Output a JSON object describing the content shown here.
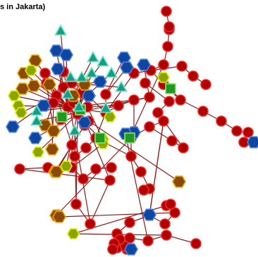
{
  "figure": {
    "title": "s in Jakarta)"
  },
  "colors": {
    "edge": "#8b1a1a",
    "red_fill": "#b10000",
    "red_stroke": "#ee2a2a",
    "blue_fill": "#0d47a1",
    "blue_stroke": "#4f7fd6",
    "brown_fill": "#8a4a06",
    "brown_stroke": "#e6a200",
    "olive_fill": "#8ca400",
    "olive_stroke": "#d9ef00",
    "green_fill": "#1f9a1f",
    "green_stroke": "#8ce27a",
    "teal_fill": "#149c84",
    "teal_stroke": "#6fe3c6"
  },
  "legend_note": "",
  "nodes": [
    {
      "id": "hub1",
      "kind": "red"
    },
    {
      "id": "hub2",
      "kind": "red"
    },
    {
      "id": "hub3",
      "kind": "red"
    },
    {
      "id": "c1",
      "kind": "red"
    },
    {
      "id": "c2",
      "kind": "red"
    },
    {
      "id": "c3",
      "kind": "red"
    },
    {
      "id": "c4",
      "kind": "red"
    },
    {
      "id": "c5",
      "kind": "red"
    },
    {
      "id": "c6",
      "kind": "red"
    },
    {
      "id": "c7",
      "kind": "red"
    },
    {
      "id": "c8",
      "kind": "red"
    },
    {
      "id": "c9",
      "kind": "red"
    },
    {
      "id": "c10",
      "kind": "red"
    },
    {
      "id": "c11",
      "kind": "red"
    },
    {
      "id": "c12",
      "kind": "red"
    },
    {
      "id": "t1",
      "kind": "red"
    },
    {
      "id": "t2",
      "kind": "red"
    },
    {
      "id": "t3",
      "kind": "red"
    },
    {
      "id": "t4",
      "kind": "red"
    },
    {
      "id": "t5",
      "kind": "red"
    },
    {
      "id": "t6",
      "kind": "red"
    },
    {
      "id": "t7",
      "kind": "red"
    },
    {
      "id": "t8",
      "kind": "red"
    },
    {
      "id": "r1",
      "kind": "red"
    },
    {
      "id": "r2",
      "kind": "red"
    },
    {
      "id": "r3",
      "kind": "red"
    },
    {
      "id": "r4",
      "kind": "red"
    },
    {
      "id": "r5",
      "kind": "red"
    },
    {
      "id": "r6",
      "kind": "red"
    },
    {
      "id": "r7",
      "kind": "red"
    },
    {
      "id": "r8",
      "kind": "red"
    },
    {
      "id": "r9",
      "kind": "red"
    },
    {
      "id": "r10",
      "kind": "red"
    },
    {
      "id": "r11",
      "kind": "red"
    },
    {
      "id": "r12",
      "kind": "red"
    },
    {
      "id": "r13",
      "kind": "red"
    },
    {
      "id": "r14",
      "kind": "red"
    },
    {
      "id": "r15",
      "kind": "red"
    },
    {
      "id": "r16",
      "kind": "red"
    },
    {
      "id": "r17",
      "kind": "red"
    },
    {
      "id": "m1",
      "kind": "red"
    },
    {
      "id": "m2",
      "kind": "red"
    },
    {
      "id": "m3",
      "kind": "red"
    },
    {
      "id": "m4",
      "kind": "red"
    },
    {
      "id": "m5",
      "kind": "red"
    },
    {
      "id": "m6",
      "kind": "red"
    },
    {
      "id": "m7",
      "kind": "red"
    },
    {
      "id": "m8",
      "kind": "red"
    },
    {
      "id": "m9",
      "kind": "red"
    },
    {
      "id": "m10",
      "kind": "red"
    },
    {
      "id": "m11",
      "kind": "red"
    },
    {
      "id": "m12",
      "kind": "red"
    },
    {
      "id": "b1",
      "kind": "red"
    },
    {
      "id": "b2",
      "kind": "red"
    },
    {
      "id": "b3",
      "kind": "red"
    },
    {
      "id": "b4",
      "kind": "red"
    },
    {
      "id": "b5",
      "kind": "red"
    },
    {
      "id": "b6",
      "kind": "red"
    },
    {
      "id": "b7",
      "kind": "red"
    },
    {
      "id": "b8",
      "kind": "red"
    },
    {
      "id": "b9",
      "kind": "red"
    },
    {
      "id": "b10",
      "kind": "red"
    },
    {
      "id": "b11",
      "kind": "red"
    },
    {
      "id": "b12",
      "kind": "red"
    },
    {
      "id": "b13",
      "kind": "red"
    },
    {
      "id": "b14",
      "kind": "red"
    },
    {
      "id": "b15",
      "kind": "red"
    },
    {
      "id": "b16",
      "kind": "red"
    },
    {
      "id": "b17",
      "kind": "red"
    },
    {
      "id": "b18",
      "kind": "red"
    },
    {
      "id": "l1",
      "kind": "red"
    },
    {
      "id": "l2",
      "kind": "red"
    },
    {
      "id": "l3",
      "kind": "red"
    },
    {
      "id": "l4",
      "kind": "red"
    },
    {
      "id": "l5",
      "kind": "red"
    },
    {
      "id": "x1",
      "kind": "red"
    },
    {
      "id": "x2",
      "kind": "red"
    },
    {
      "id": "x3",
      "kind": "red"
    },
    {
      "id": "x4",
      "kind": "red"
    },
    {
      "id": "x5",
      "kind": "red"
    },
    {
      "id": "u1",
      "kind": "blue"
    },
    {
      "id": "u2",
      "kind": "blue"
    },
    {
      "id": "u3",
      "kind": "blue"
    },
    {
      "id": "u4",
      "kind": "blue"
    },
    {
      "id": "u5",
      "kind": "blue"
    },
    {
      "id": "u6",
      "kind": "blue"
    },
    {
      "id": "u7",
      "kind": "blue"
    },
    {
      "id": "u8",
      "kind": "blue"
    },
    {
      "id": "u9",
      "kind": "blue"
    },
    {
      "id": "u10",
      "kind": "blue"
    },
    {
      "id": "u11",
      "kind": "blue"
    },
    {
      "id": "u12",
      "kind": "blue"
    },
    {
      "id": "u13",
      "kind": "blue"
    },
    {
      "id": "u14",
      "kind": "blue"
    },
    {
      "id": "u15",
      "kind": "blue"
    },
    {
      "id": "u16",
      "kind": "blue"
    },
    {
      "id": "u17",
      "kind": "blue"
    },
    {
      "id": "h1",
      "kind": "brown"
    },
    {
      "id": "h2",
      "kind": "brown"
    },
    {
      "id": "h3",
      "kind": "brown"
    },
    {
      "id": "h4",
      "kind": "brown"
    },
    {
      "id": "h5",
      "kind": "brown"
    },
    {
      "id": "h6",
      "kind": "brown"
    },
    {
      "id": "h7",
      "kind": "brown"
    },
    {
      "id": "h8",
      "kind": "brown"
    },
    {
      "id": "h9",
      "kind": "brown"
    },
    {
      "id": "h10",
      "kind": "brown"
    },
    {
      "id": "h11",
      "kind": "brown"
    },
    {
      "id": "h12",
      "kind": "brown"
    },
    {
      "id": "h13",
      "kind": "brown"
    },
    {
      "id": "h14",
      "kind": "brown"
    },
    {
      "id": "h15",
      "kind": "brown"
    },
    {
      "id": "o1",
      "kind": "olive"
    },
    {
      "id": "o2",
      "kind": "olive"
    },
    {
      "id": "o3",
      "kind": "olive"
    },
    {
      "id": "o4",
      "kind": "olive"
    },
    {
      "id": "o5",
      "kind": "olive"
    },
    {
      "id": "o6",
      "kind": "olive"
    },
    {
      "id": "o7",
      "kind": "olive"
    },
    {
      "id": "o8",
      "kind": "olive"
    },
    {
      "id": "o9",
      "kind": "olive"
    },
    {
      "id": "o10",
      "kind": "olive"
    },
    {
      "id": "o11",
      "kind": "olive"
    },
    {
      "id": "o12",
      "kind": "olive"
    },
    {
      "id": "g1",
      "kind": "green"
    },
    {
      "id": "g2",
      "kind": "green"
    },
    {
      "id": "g3",
      "kind": "green"
    },
    {
      "id": "g4",
      "kind": "green"
    },
    {
      "id": "g5",
      "kind": "green"
    },
    {
      "id": "v1",
      "kind": "teal"
    },
    {
      "id": "v2",
      "kind": "teal"
    },
    {
      "id": "v3",
      "kind": "teal"
    },
    {
      "id": "v4",
      "kind": "teal"
    },
    {
      "id": "v5",
      "kind": "teal"
    },
    {
      "id": "v6",
      "kind": "teal"
    },
    {
      "id": "v7",
      "kind": "teal"
    },
    {
      "id": "v8",
      "kind": "teal"
    },
    {
      "id": "v9",
      "kind": "teal"
    },
    {
      "id": "v10",
      "kind": "teal"
    },
    {
      "id": "v11",
      "kind": "teal"
    },
    {
      "id": "v12",
      "kind": "teal"
    },
    {
      "id": "v13",
      "kind": "teal"
    },
    {
      "id": "v14",
      "kind": "teal"
    }
  ],
  "edges": [
    [
      "hub1",
      "c1"
    ],
    [
      "hub1",
      "c2"
    ],
    [
      "hub1",
      "c3"
    ],
    [
      "hub1",
      "c4"
    ],
    [
      "hub1",
      "c5"
    ],
    [
      "hub1",
      "c6"
    ],
    [
      "hub1",
      "c7"
    ],
    [
      "hub1",
      "c8"
    ],
    [
      "hub1",
      "hub2"
    ],
    [
      "hub1",
      "hub3"
    ],
    [
      "hub2",
      "c9"
    ],
    [
      "hub2",
      "c10"
    ],
    [
      "hub2",
      "c11"
    ],
    [
      "hub3",
      "c12"
    ],
    [
      "hub1",
      "u1"
    ],
    [
      "hub1",
      "u2"
    ],
    [
      "hub1",
      "u3"
    ],
    [
      "hub1",
      "u4"
    ],
    [
      "hub1",
      "h1"
    ],
    [
      "hub1",
      "h2"
    ],
    [
      "hub1",
      "h3"
    ],
    [
      "hub1",
      "h4"
    ],
    [
      "hub1",
      "h5"
    ],
    [
      "hub1",
      "o1"
    ],
    [
      "hub1",
      "o2"
    ],
    [
      "hub1",
      "o3"
    ],
    [
      "hub1",
      "g1"
    ],
    [
      "hub1",
      "v1"
    ],
    [
      "hub1",
      "v2"
    ],
    [
      "hub1",
      "v3"
    ],
    [
      "hub2",
      "u5"
    ],
    [
      "hub2",
      "h6"
    ],
    [
      "hub2",
      "o4"
    ],
    [
      "hub2",
      "v4"
    ],
    [
      "hub2",
      "v5"
    ],
    [
      "hub2",
      "g2"
    ],
    [
      "hub3",
      "u6"
    ],
    [
      "hub3",
      "h7"
    ],
    [
      "hub3",
      "o5"
    ],
    [
      "hub3",
      "v6"
    ],
    [
      "hub3",
      "h8"
    ],
    [
      "c1",
      "h9"
    ],
    [
      "c2",
      "u7"
    ],
    [
      "c3",
      "o6"
    ],
    [
      "c4",
      "h10"
    ],
    [
      "c5",
      "u8"
    ],
    [
      "c6",
      "o7"
    ],
    [
      "c7",
      "v7"
    ],
    [
      "c8",
      "h11"
    ],
    [
      "c9",
      "u9"
    ],
    [
      "c10",
      "o8"
    ],
    [
      "c11",
      "v8"
    ],
    [
      "c12",
      "h12"
    ],
    [
      "hub1",
      "t1"
    ],
    [
      "t1",
      "t2"
    ],
    [
      "t2",
      "t3"
    ],
    [
      "t3",
      "t4"
    ],
    [
      "t1",
      "t5"
    ],
    [
      "t5",
      "u10"
    ],
    [
      "t5",
      "u11"
    ],
    [
      "t2",
      "v9"
    ],
    [
      "t2",
      "v10"
    ],
    [
      "t3",
      "v11"
    ],
    [
      "t4",
      "v12"
    ],
    [
      "t4",
      "u12"
    ],
    [
      "t3",
      "u13"
    ],
    [
      "t1",
      "r1"
    ],
    [
      "r1",
      "r2"
    ],
    [
      "r2",
      "r3"
    ],
    [
      "r3",
      "r4"
    ],
    [
      "r4",
      "r5"
    ],
    [
      "r5",
      "r6"
    ],
    [
      "r6",
      "r7"
    ],
    [
      "r2",
      "r8"
    ],
    [
      "r8",
      "r9"
    ],
    [
      "r9",
      "r10"
    ],
    [
      "r10",
      "r11"
    ],
    [
      "r11",
      "r12"
    ],
    [
      "r12",
      "r13"
    ],
    [
      "r13",
      "r14"
    ],
    [
      "r14",
      "u14"
    ],
    [
      "r8",
      "o9"
    ],
    [
      "r9",
      "g3"
    ],
    [
      "r2",
      "r15"
    ],
    [
      "r15",
      "r16"
    ],
    [
      "r16",
      "r17"
    ],
    [
      "r3",
      "g4"
    ],
    [
      "t6",
      "t1"
    ],
    [
      "t6",
      "t7"
    ],
    [
      "t7",
      "t8"
    ],
    [
      "t6",
      "m1"
    ],
    [
      "m1",
      "m2"
    ],
    [
      "m2",
      "m3"
    ],
    [
      "m3",
      "m4"
    ],
    [
      "m1",
      "m5"
    ],
    [
      "m5",
      "m6"
    ],
    [
      "m6",
      "m7"
    ],
    [
      "m7",
      "u15"
    ],
    [
      "m6",
      "m8"
    ],
    [
      "m8",
      "m9"
    ],
    [
      "m9",
      "m10"
    ],
    [
      "m10",
      "m11"
    ],
    [
      "m11",
      "m12"
    ],
    [
      "m5",
      "h13"
    ],
    [
      "m7",
      "b1"
    ],
    [
      "b1",
      "b2"
    ],
    [
      "b2",
      "b3"
    ],
    [
      "b3",
      "b4"
    ],
    [
      "b4",
      "b5"
    ],
    [
      "b1",
      "b6"
    ],
    [
      "b6",
      "b7"
    ],
    [
      "b7",
      "b8"
    ],
    [
      "b8",
      "b9"
    ],
    [
      "b9",
      "b10"
    ],
    [
      "b10",
      "u16"
    ],
    [
      "b10",
      "b11"
    ],
    [
      "b11",
      "b12"
    ],
    [
      "b12",
      "b13"
    ],
    [
      "b10",
      "b14"
    ],
    [
      "b14",
      "b15"
    ],
    [
      "b15",
      "b16"
    ],
    [
      "b16",
      "b17"
    ],
    [
      "b17",
      "b18"
    ],
    [
      "b11",
      "u17"
    ],
    [
      "b3",
      "h14"
    ],
    [
      "b4",
      "o10"
    ],
    [
      "b12",
      "o11"
    ],
    [
      "hub2",
      "l1"
    ],
    [
      "l1",
      "l2"
    ],
    [
      "l2",
      "l3"
    ],
    [
      "l3",
      "l4"
    ],
    [
      "l4",
      "l5"
    ],
    [
      "l1",
      "h15"
    ],
    [
      "l2",
      "o12"
    ],
    [
      "hub3",
      "x1"
    ],
    [
      "x1",
      "x2"
    ],
    [
      "x2",
      "x3"
    ],
    [
      "x3",
      "x4"
    ],
    [
      "x4",
      "x5"
    ],
    [
      "x1",
      "v13"
    ],
    [
      "x2",
      "v14"
    ],
    [
      "x3",
      "g5"
    ]
  ]
}
